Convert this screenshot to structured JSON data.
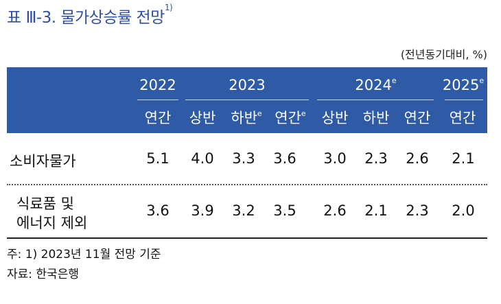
{
  "title": {
    "prefix": "표 Ⅲ-3. 물가상승률 전망",
    "sup": "1)"
  },
  "unit": "(전년동기대비, %)",
  "header": {
    "years": [
      {
        "label": "2022",
        "sup": ""
      },
      {
        "label": "2023",
        "sup": ""
      },
      {
        "label": "2024",
        "sup": "e"
      },
      {
        "label": "2025",
        "sup": "e"
      }
    ],
    "subs": [
      {
        "label": "연간",
        "sup": ""
      },
      {
        "label": "상반",
        "sup": ""
      },
      {
        "label": "하반",
        "sup": "e"
      },
      {
        "label": "연간",
        "sup": "e"
      },
      {
        "label": "상반",
        "sup": ""
      },
      {
        "label": "하반",
        "sup": ""
      },
      {
        "label": "연간",
        "sup": ""
      },
      {
        "label": "연간",
        "sup": ""
      }
    ]
  },
  "rows": [
    {
      "label_lines": [
        "소비자물가"
      ],
      "values": [
        "5.1",
        "4.0",
        "3.3",
        "3.6",
        "3.0",
        "2.3",
        "2.6",
        "2.1"
      ]
    },
    {
      "label_lines": [
        "식료품 및",
        "에너지 제외"
      ],
      "values": [
        "3.6",
        "3.9",
        "3.2",
        "3.5",
        "2.6",
        "2.1",
        "2.3",
        "2.0"
      ]
    }
  ],
  "notes": [
    "주: 1) 2023년 11월 전망 기준",
    "자료: 한국은행"
  ]
}
